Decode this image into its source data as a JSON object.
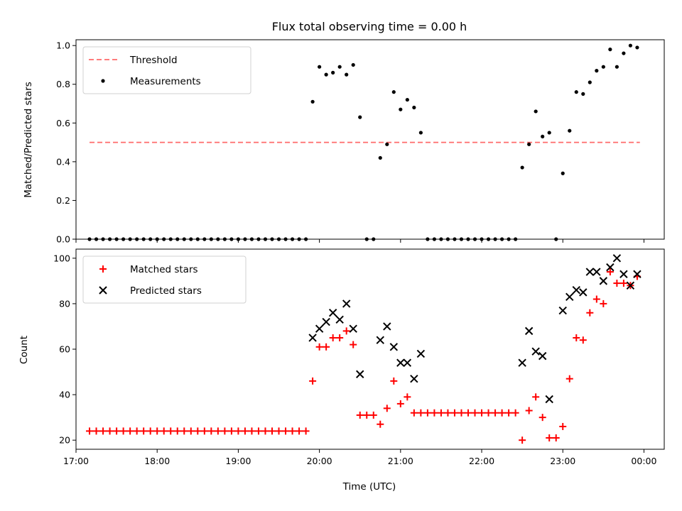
{
  "chart_data": [
    {
      "panel": "top",
      "type": "scatter",
      "title": "Flux total observing time = 0.00 h",
      "xlabel": "",
      "ylabel": "Matched/Predicted stars",
      "ylim": [
        0.0,
        1.03
      ],
      "yticks": [
        "0.0",
        "0.2",
        "0.4",
        "0.6",
        "0.8",
        "1.0"
      ],
      "xlim": [
        "17:00",
        "00:15"
      ],
      "legend": {
        "placement": "top-left",
        "entries": [
          {
            "name": "Threshold",
            "style": "dashed-line",
            "color": "#ff6a6a"
          },
          {
            "name": "Measurements",
            "style": "dot",
            "color": "#000000"
          }
        ]
      },
      "series": [
        {
          "name": "Threshold",
          "type": "line",
          "color": "#ff6a6a",
          "x": [
            "17:10",
            "23:57"
          ],
          "y": [
            0.5,
            0.5
          ]
        },
        {
          "name": "Measurements",
          "type": "scatter",
          "color": "#000000",
          "x": [
            "17:10",
            "17:15",
            "17:20",
            "17:25",
            "17:30",
            "17:35",
            "17:40",
            "17:45",
            "17:50",
            "17:55",
            "18:00",
            "18:05",
            "18:10",
            "18:15",
            "18:20",
            "18:25",
            "18:30",
            "18:35",
            "18:40",
            "18:45",
            "18:50",
            "18:55",
            "19:00",
            "19:05",
            "19:10",
            "19:15",
            "19:20",
            "19:25",
            "19:30",
            "19:35",
            "19:40",
            "19:45",
            "19:50",
            "19:55",
            "20:00",
            "20:05",
            "20:10",
            "20:15",
            "20:20",
            "20:25",
            "20:30",
            "20:35",
            "20:40",
            "20:45",
            "20:50",
            "20:55",
            "21:00",
            "21:05",
            "21:10",
            "21:15",
            "21:20",
            "21:25",
            "21:30",
            "21:35",
            "21:40",
            "21:45",
            "21:50",
            "21:55",
            "22:00",
            "22:05",
            "22:10",
            "22:15",
            "22:20",
            "22:25",
            "22:30",
            "22:35",
            "22:40",
            "22:45",
            "22:50",
            "22:55",
            "23:00",
            "23:05",
            "23:10",
            "23:15",
            "23:20",
            "23:25",
            "23:30",
            "23:35",
            "23:40",
            "23:45",
            "23:50",
            "23:55"
          ],
          "y": [
            0,
            0,
            0,
            0,
            0,
            0,
            0,
            0,
            0,
            0,
            0,
            0,
            0,
            0,
            0,
            0,
            0,
            0,
            0,
            0,
            0,
            0,
            0,
            0,
            0,
            0,
            0,
            0,
            0,
            0,
            0,
            0,
            0,
            0.71,
            0.89,
            0.85,
            0.86,
            0.89,
            0.85,
            0.9,
            0.63,
            0,
            0,
            0.42,
            0.49,
            0.76,
            0.67,
            0.72,
            0.68,
            0.55,
            0,
            0,
            0,
            0,
            0,
            0,
            0,
            0,
            0,
            0,
            0,
            0,
            0,
            0,
            0.37,
            0.49,
            0.66,
            0.53,
            0.55,
            0,
            0.34,
            0.56,
            0.76,
            0.75,
            0.81,
            0.87,
            0.89,
            0.98,
            0.89,
            0.96,
            1.0,
            0.99
          ]
        }
      ]
    },
    {
      "panel": "bottom",
      "type": "scatter",
      "title": "",
      "xlabel": "Time (UTC)",
      "ylabel": "Count",
      "ylim": [
        16,
        104
      ],
      "yticks": [
        "20",
        "40",
        "60",
        "80",
        "100"
      ],
      "xlim": [
        "17:00",
        "00:15"
      ],
      "xticks": [
        "17:00",
        "18:00",
        "19:00",
        "20:00",
        "21:00",
        "22:00",
        "23:00",
        "00:00"
      ],
      "legend": {
        "placement": "top-left",
        "entries": [
          {
            "name": "Matched stars",
            "style": "plus",
            "color": "#ff0000"
          },
          {
            "name": "Predicted stars",
            "style": "x",
            "color": "#000000"
          }
        ]
      },
      "series": [
        {
          "name": "Matched stars",
          "marker": "plus",
          "color": "#ff0000",
          "x": [
            "17:10",
            "17:15",
            "17:20",
            "17:25",
            "17:30",
            "17:35",
            "17:40",
            "17:45",
            "17:50",
            "17:55",
            "18:00",
            "18:05",
            "18:10",
            "18:15",
            "18:20",
            "18:25",
            "18:30",
            "18:35",
            "18:40",
            "18:45",
            "18:50",
            "18:55",
            "19:00",
            "19:05",
            "19:10",
            "19:15",
            "19:20",
            "19:25",
            "19:30",
            "19:35",
            "19:40",
            "19:45",
            "19:50",
            "19:55",
            "20:00",
            "20:05",
            "20:10",
            "20:15",
            "20:20",
            "20:25",
            "20:30",
            "20:35",
            "20:40",
            "20:45",
            "20:50",
            "20:55",
            "21:00",
            "21:05",
            "21:10",
            "21:15",
            "21:20",
            "21:25",
            "21:30",
            "21:35",
            "21:40",
            "21:45",
            "21:50",
            "21:55",
            "22:00",
            "22:05",
            "22:10",
            "22:15",
            "22:20",
            "22:25",
            "22:30",
            "22:35",
            "22:40",
            "22:45",
            "22:50",
            "22:55",
            "23:00",
            "23:05",
            "23:10",
            "23:15",
            "23:20",
            "23:25",
            "23:30",
            "23:35",
            "23:40",
            "23:45",
            "23:50",
            "23:55"
          ],
          "y": [
            24,
            24,
            24,
            24,
            24,
            24,
            24,
            24,
            24,
            24,
            24,
            24,
            24,
            24,
            24,
            24,
            24,
            24,
            24,
            24,
            24,
            24,
            24,
            24,
            24,
            24,
            24,
            24,
            24,
            24,
            24,
            24,
            24,
            46,
            61,
            61,
            65,
            65,
            68,
            62,
            31,
            31,
            31,
            27,
            34,
            46,
            36,
            39,
            32,
            32,
            32,
            32,
            32,
            32,
            32,
            32,
            32,
            32,
            32,
            32,
            32,
            32,
            32,
            32,
            20,
            33,
            39,
            30,
            21,
            21,
            26,
            47,
            65,
            64,
            76,
            82,
            80,
            94,
            89,
            89,
            88,
            92
          ]
        },
        {
          "name": "Predicted stars",
          "marker": "x",
          "color": "#000000",
          "x": [
            "19:55",
            "20:00",
            "20:05",
            "20:10",
            "20:15",
            "20:20",
            "20:25",
            "20:30",
            "20:45",
            "20:50",
            "20:55",
            "21:00",
            "21:05",
            "21:10",
            "21:15",
            "22:30",
            "22:35",
            "22:40",
            "22:45",
            "22:50",
            "23:00",
            "23:05",
            "23:10",
            "23:15",
            "23:20",
            "23:25",
            "23:30",
            "23:35",
            "23:40",
            "23:45",
            "23:50",
            "23:55"
          ],
          "y": [
            65,
            69,
            72,
            76,
            73,
            80,
            69,
            49,
            64,
            70,
            61,
            54,
            54,
            47,
            58,
            54,
            68,
            59,
            57,
            38,
            77,
            83,
            86,
            85,
            94,
            94,
            90,
            96,
            100,
            93,
            88,
            93
          ]
        }
      ]
    }
  ]
}
